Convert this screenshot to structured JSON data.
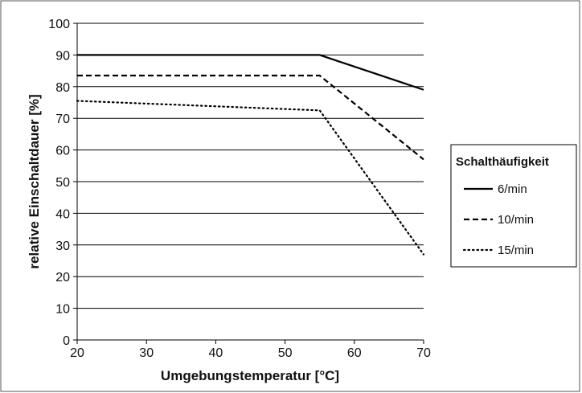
{
  "chart_data": {
    "type": "line",
    "xlabel": "Umgebungstemperatur [°C]",
    "ylabel": "relative Einschaltdauer [%]",
    "xlim": [
      20,
      70
    ],
    "ylim": [
      0,
      100
    ],
    "x_ticks": [
      20,
      30,
      40,
      50,
      60,
      70
    ],
    "y_ticks": [
      0,
      10,
      20,
      30,
      40,
      50,
      60,
      70,
      80,
      90,
      100
    ],
    "grid": "horizontal",
    "legend": {
      "title": "Schalthäufigkeit",
      "placement": "right"
    },
    "series": [
      {
        "name": "6/min",
        "style": "solid",
        "x": [
          20,
          55,
          70
        ],
        "y": [
          90,
          90,
          79
        ]
      },
      {
        "name": "10/min",
        "style": "dashed",
        "x": [
          20,
          55,
          70
        ],
        "y": [
          83.5,
          83.5,
          57
        ]
      },
      {
        "name": "15/min",
        "style": "dotted",
        "x": [
          20,
          55,
          70
        ],
        "y": [
          75.5,
          72.5,
          27
        ]
      }
    ],
    "colors": {
      "line": "#000000",
      "grid": "#000000"
    }
  }
}
